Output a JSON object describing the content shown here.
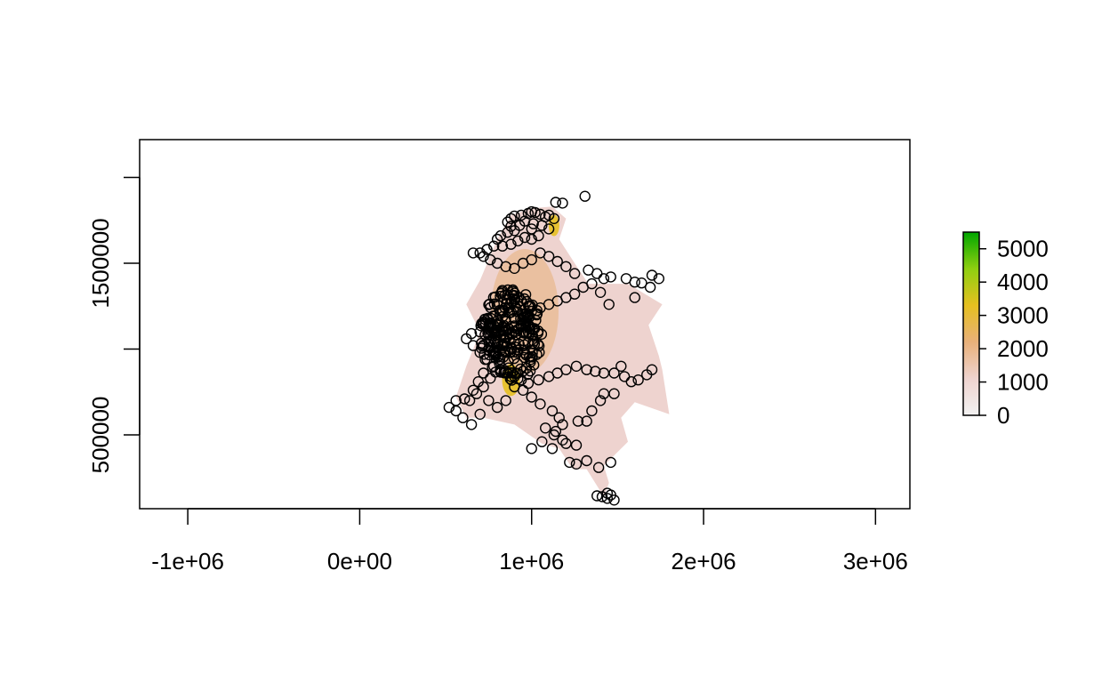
{
  "chart_data": {
    "type": "scatter",
    "title": "",
    "xlabel": "",
    "ylabel": "",
    "xlim": [
      -1280000,
      3200000
    ],
    "ylim": [
      70000,
      2220000
    ],
    "x_ticks": [
      {
        "value": -1000000,
        "label": "-1e+06"
      },
      {
        "value": 0,
        "label": "0e+00"
      },
      {
        "value": 1000000,
        "label": "1e+06"
      },
      {
        "value": 2000000,
        "label": "2e+06"
      },
      {
        "value": 3000000,
        "label": "3e+06"
      }
    ],
    "y_ticks": [
      {
        "value": 500000,
        "label": "500000"
      },
      {
        "value": 1000000,
        "label": ""
      },
      {
        "value": 1500000,
        "label": "1500000"
      },
      {
        "value": 2000000,
        "label": ""
      }
    ],
    "raster": {
      "description_units": "background raster values",
      "range": [
        0,
        5500
      ],
      "legend_ticks": [
        {
          "value": 0,
          "label": "0"
        },
        {
          "value": 1000,
          "label": "1000"
        },
        {
          "value": 2000,
          "label": "2000"
        },
        {
          "value": 3000,
          "label": "3000"
        },
        {
          "value": 4000,
          "label": "4000"
        },
        {
          "value": 5000,
          "label": "5000"
        }
      ],
      "colors": [
        "#f2f2f2",
        "#eed3cf",
        "#e8b07a",
        "#e6c020",
        "#8fcf10",
        "#00a600"
      ]
    },
    "points": [
      [
        1310000,
        1890000
      ],
      [
        1180000,
        1850000
      ],
      [
        1140000,
        1855000
      ],
      [
        1000000,
        1800000
      ],
      [
        1020000,
        1795000
      ],
      [
        980000,
        1790000
      ],
      [
        1050000,
        1785000
      ],
      [
        940000,
        1780000
      ],
      [
        900000,
        1775000
      ],
      [
        1100000,
        1780000
      ],
      [
        880000,
        1760000
      ],
      [
        860000,
        1740000
      ],
      [
        1080000,
        1770000
      ],
      [
        1130000,
        1760000
      ],
      [
        960000,
        1745000
      ],
      [
        930000,
        1720000
      ],
      [
        880000,
        1715000
      ],
      [
        1010000,
        1730000
      ],
      [
        1060000,
        1720000
      ],
      [
        1000000,
        1700000
      ],
      [
        900000,
        1690000
      ],
      [
        860000,
        1680000
      ],
      [
        820000,
        1660000
      ],
      [
        800000,
        1640000
      ],
      [
        960000,
        1650000
      ],
      [
        1040000,
        1660000
      ],
      [
        1100000,
        1700000
      ],
      [
        1000000,
        1640000
      ],
      [
        920000,
        1630000
      ],
      [
        880000,
        1610000
      ],
      [
        830000,
        1600000
      ],
      [
        780000,
        1600000
      ],
      [
        740000,
        1580000
      ],
      [
        700000,
        1560000
      ],
      [
        660000,
        1560000
      ],
      [
        720000,
        1540000
      ],
      [
        760000,
        1520000
      ],
      [
        800000,
        1500000
      ],
      [
        850000,
        1480000
      ],
      [
        900000,
        1470000
      ],
      [
        950000,
        1500000
      ],
      [
        1000000,
        1520000
      ],
      [
        1050000,
        1560000
      ],
      [
        1100000,
        1540000
      ],
      [
        1150000,
        1510000
      ],
      [
        1200000,
        1480000
      ],
      [
        1250000,
        1440000
      ],
      [
        1330000,
        1460000
      ],
      [
        1380000,
        1440000
      ],
      [
        1420000,
        1410000
      ],
      [
        1460000,
        1420000
      ],
      [
        1550000,
        1410000
      ],
      [
        1600000,
        1390000
      ],
      [
        1640000,
        1385000
      ],
      [
        1700000,
        1430000
      ],
      [
        1740000,
        1410000
      ],
      [
        1690000,
        1360000
      ],
      [
        1600000,
        1300000
      ],
      [
        1450000,
        1260000
      ],
      [
        1400000,
        1330000
      ],
      [
        1350000,
        1380000
      ],
      [
        1300000,
        1360000
      ],
      [
        1250000,
        1320000
      ],
      [
        1200000,
        1300000
      ],
      [
        1150000,
        1280000
      ],
      [
        1100000,
        1260000
      ],
      [
        1050000,
        1240000
      ],
      [
        1000000,
        1220000
      ],
      [
        950000,
        1200000
      ],
      [
        900000,
        1180000
      ],
      [
        850000,
        1160000
      ],
      [
        800000,
        1140000
      ],
      [
        750000,
        1120000
      ],
      [
        700000,
        1100000
      ],
      [
        650000,
        1090000
      ],
      [
        620000,
        1060000
      ],
      [
        660000,
        1020000
      ],
      [
        700000,
        980000
      ],
      [
        740000,
        940000
      ],
      [
        780000,
        900000
      ],
      [
        820000,
        880000
      ],
      [
        860000,
        860000
      ],
      [
        900000,
        840000
      ],
      [
        940000,
        820000
      ],
      [
        980000,
        800000
      ],
      [
        1040000,
        820000
      ],
      [
        1100000,
        840000
      ],
      [
        1150000,
        860000
      ],
      [
        1200000,
        880000
      ],
      [
        1260000,
        900000
      ],
      [
        1320000,
        880000
      ],
      [
        1370000,
        870000
      ],
      [
        1420000,
        860000
      ],
      [
        1480000,
        860000
      ],
      [
        1540000,
        840000
      ],
      [
        1580000,
        810000
      ],
      [
        1620000,
        820000
      ],
      [
        1670000,
        850000
      ],
      [
        1700000,
        880000
      ],
      [
        1520000,
        900000
      ],
      [
        1480000,
        740000
      ],
      [
        1420000,
        740000
      ],
      [
        1400000,
        700000
      ],
      [
        1350000,
        640000
      ],
      [
        1320000,
        580000
      ],
      [
        1270000,
        580000
      ],
      [
        1180000,
        560000
      ],
      [
        1160000,
        600000
      ],
      [
        1120000,
        640000
      ],
      [
        1050000,
        680000
      ],
      [
        1000000,
        720000
      ],
      [
        950000,
        760000
      ],
      [
        900000,
        780000
      ],
      [
        850000,
        700000
      ],
      [
        800000,
        660000
      ],
      [
        750000,
        700000
      ],
      [
        700000,
        620000
      ],
      [
        650000,
        560000
      ],
      [
        600000,
        600000
      ],
      [
        560000,
        640000
      ],
      [
        520000,
        660000
      ],
      [
        560000,
        700000
      ],
      [
        610000,
        710000
      ],
      [
        660000,
        760000
      ],
      [
        690000,
        810000
      ],
      [
        720000,
        860000
      ],
      [
        760000,
        830000
      ],
      [
        720000,
        780000
      ],
      [
        680000,
        740000
      ],
      [
        640000,
        700000
      ],
      [
        1130000,
        500000
      ],
      [
        1180000,
        470000
      ],
      [
        1200000,
        450000
      ],
      [
        1000000,
        420000
      ],
      [
        1220000,
        340000
      ],
      [
        1260000,
        330000
      ],
      [
        1320000,
        350000
      ],
      [
        1390000,
        310000
      ],
      [
        1460000,
        340000
      ],
      [
        1380000,
        145000
      ],
      [
        1410000,
        140000
      ],
      [
        1440000,
        160000
      ],
      [
        1460000,
        150000
      ],
      [
        1480000,
        120000
      ],
      [
        1440000,
        130000
      ],
      [
        1120000,
        420000
      ],
      [
        1060000,
        460000
      ],
      [
        1080000,
        540000
      ],
      [
        1140000,
        520000
      ],
      [
        1260000,
        440000
      ]
    ],
    "dense_cluster": {
      "center": [
        880000,
        1080000
      ],
      "spread": [
        180000,
        170000
      ],
      "count": 240
    }
  }
}
